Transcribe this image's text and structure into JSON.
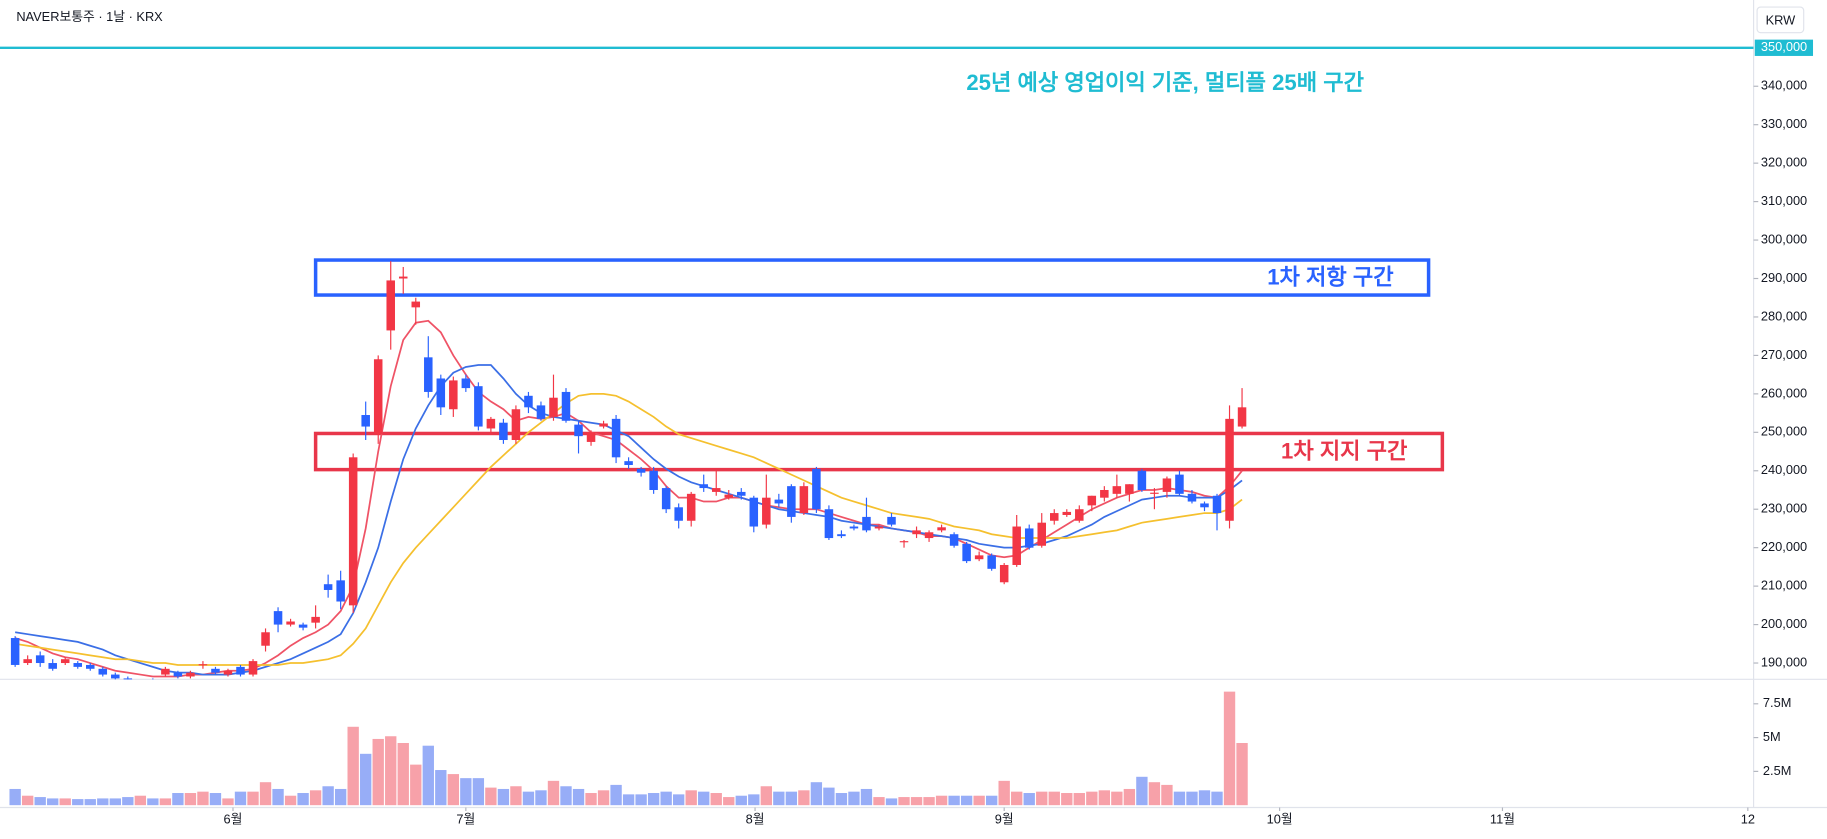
{
  "chart_data": {
    "type": "candlestick",
    "title": "NAVER보통주 · 1날 · KRX",
    "currency": "KRW",
    "categories": [
      null,
      null,
      null,
      null,
      null,
      null,
      null,
      null,
      null,
      null,
      null,
      null,
      null,
      null,
      null,
      null,
      null,
      null,
      null,
      null,
      null,
      null,
      null,
      null,
      null,
      null,
      null,
      null,
      null,
      null,
      null,
      null,
      null,
      null,
      null,
      null,
      null,
      null,
      null,
      null,
      null,
      null,
      null,
      null,
      null,
      null,
      null,
      null,
      null,
      null,
      null,
      null,
      null,
      null,
      null,
      null,
      null,
      null,
      null,
      null,
      null,
      null,
      null,
      null,
      null,
      null,
      null,
      null,
      null,
      null,
      null,
      null,
      null,
      null,
      null,
      null,
      null,
      null,
      null,
      null,
      null,
      null,
      null,
      null,
      null,
      null,
      null,
      null,
      null,
      null,
      null,
      null,
      null,
      null,
      null,
      null,
      null,
      null,
      null
    ],
    "open": [
      196500,
      190000,
      192000,
      190000,
      190000,
      190000,
      189500,
      188500,
      187000,
      186000,
      184500,
      185000,
      187000,
      187500,
      186500,
      189500,
      188500,
      187000,
      189000,
      187000,
      194500,
      203500,
      200000,
      200000,
      200500,
      210500,
      211500,
      205000,
      254500,
      249500,
      276500,
      290000,
      282500,
      269500,
      264000,
      256000,
      264000,
      262000,
      251000,
      252500,
      248000,
      259500,
      257000,
      254000,
      260500,
      252000,
      247500,
      251500,
      253500,
      242500,
      240500,
      240000,
      235500,
      230500,
      227000,
      236500,
      234500,
      233000,
      234500,
      233000,
      226000,
      232500,
      236000,
      229000,
      240500,
      230000,
      223500,
      225500,
      228000,
      225000,
      228000,
      221500,
      223500,
      222500,
      224500,
      223500,
      221000,
      217000,
      218000,
      211000,
      215500,
      225000,
      220500,
      227000,
      228500,
      227000,
      231000,
      233000,
      234000,
      234000,
      240000,
      234000,
      234500,
      239000,
      234000,
      231500,
      233500,
      227000,
      251500
    ],
    "high": [
      197000,
      192000,
      193000,
      191000,
      191500,
      190500,
      190000,
      189000,
      187500,
      186500,
      185500,
      186000,
      189000,
      188000,
      188000,
      190500,
      189000,
      188500,
      189500,
      191000,
      199000,
      204500,
      201500,
      200500,
      205000,
      213000,
      214000,
      244500,
      258000,
      270000,
      294500,
      293000,
      285000,
      275000,
      265000,
      264500,
      265000,
      263000,
      254000,
      253500,
      257000,
      260500,
      258000,
      265000,
      261500,
      253000,
      250500,
      253000,
      254500,
      243500,
      241000,
      241000,
      236000,
      231500,
      234500,
      239000,
      240000,
      235000,
      235500,
      233500,
      239000,
      234000,
      236500,
      237000,
      241000,
      231000,
      224500,
      226000,
      233000,
      226000,
      229000,
      222000,
      225500,
      224500,
      226000,
      224000,
      221500,
      219000,
      218500,
      216000,
      228500,
      226000,
      229000,
      230000,
      230000,
      231000,
      233500,
      236000,
      239000,
      236500,
      240500,
      235500,
      238500,
      240000,
      235000,
      232000,
      234000,
      257000,
      261500
    ],
    "low": [
      189000,
      189500,
      189000,
      188000,
      189500,
      188500,
      188000,
      186500,
      185000,
      184000,
      183500,
      184000,
      186500,
      186000,
      186000,
      188500,
      187000,
      186500,
      186500,
      186500,
      193000,
      198000,
      199500,
      198500,
      199000,
      207000,
      204000,
      203000,
      248000,
      247000,
      271500,
      286000,
      278000,
      259000,
      254500,
      254000,
      260500,
      250500,
      249500,
      247000,
      247000,
      255000,
      253000,
      253000,
      252500,
      244500,
      246500,
      251000,
      242000,
      240500,
      238500,
      234000,
      229000,
      225000,
      225500,
      234500,
      233500,
      232500,
      232500,
      224000,
      225000,
      230500,
      226500,
      228500,
      229000,
      222000,
      222500,
      224500,
      224000,
      224500,
      225500,
      220000,
      222500,
      221500,
      224000,
      220000,
      216000,
      216500,
      214000,
      210500,
      215000,
      219500,
      220000,
      226000,
      228000,
      226500,
      229500,
      232000,
      233000,
      232000,
      234500,
      230000,
      233000,
      233500,
      231500,
      229500,
      224500,
      225000,
      251000
    ],
    "close": [
      189500,
      191000,
      190000,
      188500,
      191000,
      189000,
      188500,
      187000,
      186000,
      184500,
      185000,
      184500,
      188500,
      186500,
      187500,
      189700,
      187500,
      188000,
      187000,
      190500,
      198000,
      200000,
      200800,
      199200,
      202000,
      209000,
      206000,
      243500,
      251500,
      269000,
      289500,
      290500,
      284000,
      260500,
      256500,
      263500,
      261500,
      251500,
      253500,
      248000,
      256000,
      256500,
      253500,
      259000,
      253000,
      249000,
      250000,
      252300,
      243500,
      241500,
      239500,
      235000,
      230000,
      227000,
      234000,
      235500,
      235500,
      233800,
      233500,
      225500,
      233000,
      231500,
      228000,
      236000,
      230000,
      222500,
      223000,
      225000,
      224500,
      225500,
      226000,
      221700,
      224500,
      224000,
      225300,
      220500,
      216500,
      218000,
      214500,
      215500,
      225500,
      220000,
      226500,
      229000,
      229300,
      230000,
      233500,
      235000,
      236000,
      236500,
      235000,
      234300,
      238000,
      234000,
      232000,
      230500,
      229000,
      253500,
      256500
    ],
    "up_color": "#f23645",
    "down_color": "#2962ff",
    "moving_averages": [
      {
        "color": "#ef5366",
        "values": [
          196500,
          195500,
          194000,
          192500,
          191500,
          191000,
          190000,
          189000,
          188000,
          187500,
          187000,
          186500,
          186500,
          186500,
          187000,
          187000,
          187500,
          188000,
          188000,
          188500,
          190000,
          192000,
          194500,
          196500,
          198000,
          200000,
          203500,
          210000,
          225000,
          245000,
          262000,
          274000,
          278500,
          279000,
          276000,
          270000,
          265000,
          260500,
          258000,
          256000,
          253000,
          254000,
          253500,
          254000,
          255000,
          253000,
          250000,
          249000,
          248000,
          245500,
          243000,
          240000,
          236000,
          233000,
          233000,
          232000,
          232000,
          233000,
          233000,
          232000,
          231000,
          230500,
          230000,
          230000,
          230000,
          229000,
          228000,
          227000,
          226000,
          226000,
          225000,
          224500,
          224000,
          223000,
          223000,
          222500,
          221000,
          219500,
          218000,
          217500,
          218000,
          220000,
          222000,
          224000,
          226000,
          228000,
          230000,
          231500,
          233000,
          234000,
          235000,
          235000,
          235500,
          235000,
          234500,
          233500,
          233000,
          236000,
          240000
        ]
      },
      {
        "color": "#3b6fe6",
        "values": [
          198000,
          197500,
          197000,
          196500,
          196000,
          195500,
          194500,
          193500,
          192000,
          191000,
          190000,
          189000,
          188000,
          187500,
          187500,
          187000,
          187000,
          187000,
          187500,
          188000,
          189000,
          190000,
          191000,
          192500,
          194000,
          195500,
          197500,
          203000,
          211000,
          220000,
          232000,
          243000,
          251000,
          257000,
          262000,
          265500,
          267000,
          267500,
          267500,
          264000,
          260000,
          257000,
          255000,
          254000,
          253500,
          253000,
          252500,
          252000,
          250500,
          249000,
          246000,
          243000,
          240500,
          238500,
          237000,
          236000,
          235000,
          234000,
          233000,
          232000,
          231000,
          230000,
          229500,
          229000,
          228500,
          228000,
          227000,
          226500,
          226000,
          225500,
          225000,
          224500,
          224000,
          223500,
          223000,
          222500,
          222000,
          221000,
          220500,
          220000,
          220000,
          220500,
          221000,
          222000,
          223000,
          224500,
          226000,
          228000,
          229500,
          231000,
          232500,
          233000,
          233500,
          233500,
          233000,
          233000,
          233000,
          235000,
          237500
        ]
      },
      {
        "color": "#f5c02e",
        "values": [
          195000,
          194500,
          194000,
          193500,
          193000,
          192500,
          192000,
          191500,
          191000,
          191000,
          190500,
          190000,
          190000,
          189500,
          189500,
          189500,
          189500,
          189500,
          189500,
          189500,
          189500,
          189500,
          190000,
          190000,
          190500,
          191000,
          192000,
          195000,
          199000,
          205000,
          211000,
          216000,
          220000,
          223500,
          227000,
          230500,
          234000,
          237500,
          241000,
          244000,
          247000,
          250000,
          252500,
          255000,
          257500,
          259500,
          260000,
          260000,
          259500,
          258000,
          256000,
          254000,
          251500,
          249500,
          248500,
          247500,
          246500,
          245500,
          244500,
          243500,
          242000,
          240500,
          239000,
          237500,
          236000,
          234500,
          233000,
          232000,
          231000,
          230000,
          229000,
          228500,
          228000,
          227500,
          226500,
          225500,
          225000,
          224500,
          223500,
          223000,
          222500,
          222500,
          222500,
          222500,
          222500,
          223000,
          223500,
          224000,
          224500,
          225500,
          226500,
          227000,
          227500,
          228000,
          228500,
          229000,
          229000,
          230000,
          232500
        ]
      }
    ],
    "xlim": [
      -1.21,
      138.86
    ],
    "xticks": [
      {
        "value": 17.4,
        "label": "6월"
      },
      {
        "value": 36.0,
        "label": "7월"
      },
      {
        "value": 59.1,
        "label": "8월"
      },
      {
        "value": 79.0,
        "label": "9월"
      },
      {
        "value": 101.0,
        "label": "10월"
      },
      {
        "value": 118.8,
        "label": "11월"
      },
      {
        "value": 138.4,
        "label": "12"
      }
    ],
    "ylim": [
      185760,
      362420
    ],
    "yticks": [
      {
        "value": 190000,
        "label": "190,000"
      },
      {
        "value": 200000,
        "label": "200,000"
      },
      {
        "value": 210000,
        "label": "210,000"
      },
      {
        "value": 220000,
        "label": "220,000"
      },
      {
        "value": 230000,
        "label": "230,000"
      },
      {
        "value": 240000,
        "label": "240,000"
      },
      {
        "value": 250000,
        "label": "250,000"
      },
      {
        "value": 260000,
        "label": "260,000"
      },
      {
        "value": 270000,
        "label": "270,000"
      },
      {
        "value": 280000,
        "label": "280,000"
      },
      {
        "value": 290000,
        "label": "290,000"
      },
      {
        "value": 300000,
        "label": "300,000"
      },
      {
        "value": 310000,
        "label": "310,000"
      },
      {
        "value": 320000,
        "label": "320,000"
      },
      {
        "value": 330000,
        "label": "330,000"
      },
      {
        "value": 340000,
        "label": "340,000"
      }
    ],
    "price_line": {
      "value": 350000,
      "label": "350,000",
      "color": "#1fbcd2"
    },
    "annotation": {
      "text": "25년 예상 영업이익 기준, 멀티플 25배 구간",
      "color": "#1fbcd2"
    },
    "zones": [
      {
        "label": "1차 저항 구간",
        "color": "#2962ff",
        "range": [
          285700,
          294800
        ],
        "start": 24.0,
        "end": 112.9
      },
      {
        "label": "1차 지지 구간",
        "color": "#e8364a",
        "range": [
          240300,
          249700
        ],
        "start": 24.0,
        "end": 114.0
      }
    ],
    "volume": {
      "values": [
        1200000,
        700000,
        600000,
        500000,
        500000,
        450000,
        450000,
        500000,
        500000,
        600000,
        700000,
        500000,
        500000,
        900000,
        900000,
        1000000,
        900000,
        500000,
        1000000,
        1000000,
        1700000,
        1200000,
        700000,
        900000,
        1100000,
        1400000,
        1200000,
        5800000,
        3800000,
        4900000,
        5100000,
        4600000,
        3000000,
        4400000,
        2600000,
        2300000,
        2000000,
        2000000,
        1300000,
        1200000,
        1400000,
        1000000,
        1100000,
        1800000,
        1400000,
        1200000,
        900000,
        1100000,
        1500000,
        800000,
        800000,
        900000,
        1000000,
        800000,
        1100000,
        1000000,
        900000,
        600000,
        700000,
        800000,
        1400000,
        1000000,
        1000000,
        1100000,
        1700000,
        1300000,
        900000,
        1000000,
        1200000,
        600000,
        500000,
        600000,
        600000,
        600000,
        700000,
        700000,
        700000,
        700000,
        700000,
        1800000,
        1000000,
        900000,
        1000000,
        1000000,
        900000,
        900000,
        1000000,
        1100000,
        1000000,
        1200000,
        2100000,
        1700000,
        1500000,
        1000000,
        1000000,
        1100000,
        1000000,
        8400000,
        4600000
      ],
      "up_color": "#f7a1a9",
      "down_color": "#97adf7",
      "ylim": [
        0,
        9310000
      ],
      "yticks": [
        {
          "value": 2500000,
          "label": "2.5M"
        },
        {
          "value": 5000000,
          "label": "5M"
        },
        {
          "value": 7500000,
          "label": "7.5M"
        }
      ]
    }
  }
}
